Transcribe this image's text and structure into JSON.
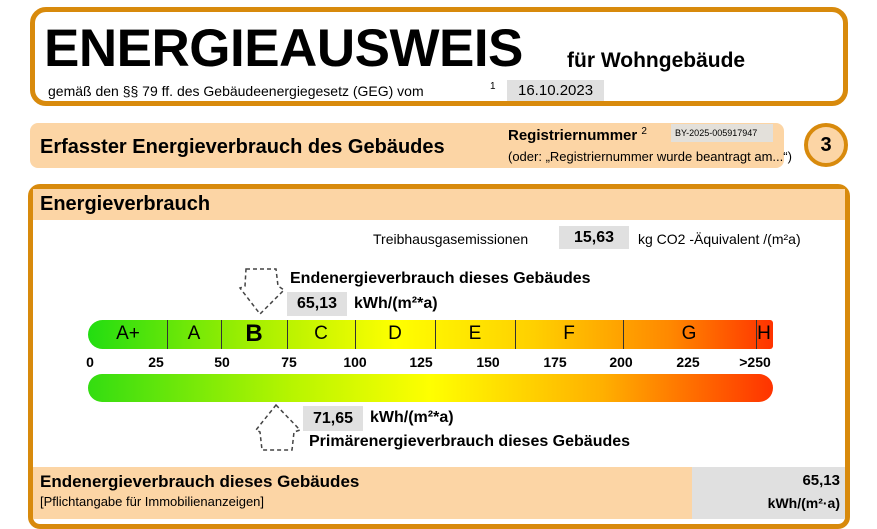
{
  "header": {
    "title": "ENERGIEAUSWEIS",
    "subtitle": "für Wohngebäude",
    "law": "gemäß den §§ 79 ff. des Gebäudeenergiegesetz (GEG) vom",
    "footnote": "1",
    "date": "16.10.2023"
  },
  "section": {
    "title": "Erfasster Energieverbrauch des Gebäudes",
    "reg_label": "Registriernummer",
    "reg_sup": "2",
    "reg_number": "BY-2025-005917947",
    "reg_note": "(oder: „Registriernummer wurde beantragt am...“)",
    "page": "3"
  },
  "main": {
    "title": "Energieverbrauch",
    "thg_label": "Treibhausgasemissionen",
    "thg_value": "15,63",
    "thg_unit": "kg CO2 -Äquivalent /(m²a)",
    "end_label": "Endenergieverbrauch dieses Gebäudes",
    "end_value": "65,13",
    "end_unit": "kWh/(m²*a)",
    "classes": [
      "A+",
      "A",
      "B",
      "C",
      "D",
      "E",
      "F",
      "G",
      "H"
    ],
    "highlighted_class": "B",
    "ticks": [
      "0",
      "25",
      "50",
      "75",
      "100",
      "125",
      "150",
      "175",
      "200",
      "225",
      ">250"
    ],
    "prim_value": "71,65",
    "prim_unit": "kWh/(m²*a)",
    "prim_label": "Primärenergieverbrauch dieses Gebäudes"
  },
  "footer": {
    "title": "Endenergieverbrauch dieses Gebäudes",
    "note": "[Pflichtangabe für Immobilienanzeigen]",
    "value": "65,13",
    "unit": "kWh/(m²·a)"
  },
  "colors": {
    "accent": "#d88a0c",
    "band": "#fcd5a5",
    "value_bg": "#e0e0e0"
  }
}
